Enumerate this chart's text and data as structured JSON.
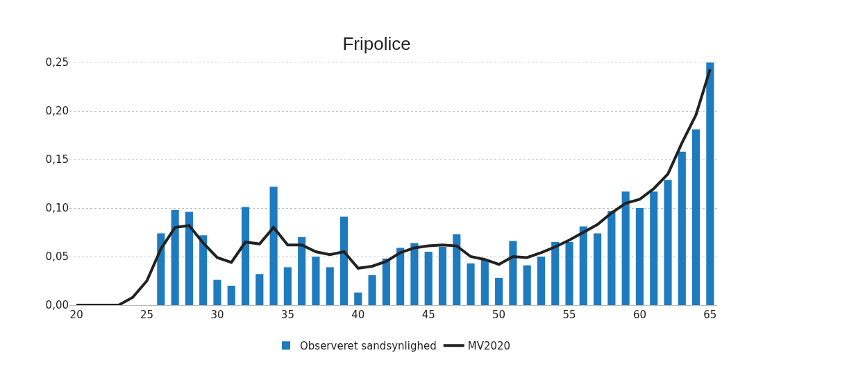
{
  "chart_data": {
    "type": "bar",
    "title": "Fripolice",
    "x": [
      20,
      21,
      22,
      23,
      24,
      25,
      26,
      27,
      28,
      29,
      30,
      31,
      32,
      33,
      34,
      35,
      36,
      37,
      38,
      39,
      40,
      41,
      42,
      43,
      44,
      45,
      46,
      47,
      48,
      49,
      50,
      51,
      52,
      53,
      54,
      55,
      56,
      57,
      58,
      59,
      60,
      61,
      62,
      63,
      64,
      65
    ],
    "series": [
      {
        "name": "Observeret sandsynlighed",
        "color": "#1f7bbf",
        "values": [
          0,
          0,
          0,
          0,
          0,
          0,
          0.074,
          0.098,
          0.096,
          0.072,
          0.026,
          0.02,
          0.101,
          0.032,
          0.122,
          0.039,
          0.07,
          0.05,
          0.039,
          0.091,
          0.013,
          0.031,
          0.048,
          0.059,
          0.064,
          0.055,
          0.06,
          0.073,
          0.043,
          0.047,
          0.028,
          0.066,
          0.041,
          0.05,
          0.065,
          0.065,
          0.081,
          0.074,
          0.097,
          0.117,
          0.1,
          0.117,
          0.129,
          0.158,
          0.181,
          0.25
        ]
      },
      {
        "name": "MV2020",
        "type": "line",
        "color": "#222222",
        "values": [
          0,
          0,
          0,
          0,
          0.008,
          0.025,
          0.058,
          0.08,
          0.082,
          0.064,
          0.049,
          0.044,
          0.065,
          0.063,
          0.08,
          0.062,
          0.062,
          0.055,
          0.052,
          0.055,
          0.038,
          0.04,
          0.045,
          0.054,
          0.059,
          0.061,
          0.062,
          0.061,
          0.05,
          0.047,
          0.042,
          0.05,
          0.049,
          0.054,
          0.06,
          0.067,
          0.075,
          0.083,
          0.095,
          0.105,
          0.109,
          0.12,
          0.135,
          0.167,
          0.196,
          0.243
        ]
      }
    ],
    "xlim": [
      19.5,
      65.5
    ],
    "xticks": [
      20,
      25,
      30,
      35,
      40,
      45,
      50,
      55,
      60,
      65
    ],
    "ylim": [
      0,
      0.25
    ],
    "yticks": [
      {
        "value": 0,
        "label": "0,00"
      },
      {
        "value": 0.05,
        "label": "0,05"
      },
      {
        "value": 0.1,
        "label": "0,10"
      },
      {
        "value": 0.15,
        "label": "0,15"
      },
      {
        "value": 0.2,
        "label": "0,20"
      },
      {
        "value": 0.25,
        "label": "0,25"
      }
    ],
    "grid": "y",
    "legend": "bottom",
    "marker": "none",
    "line_style": "solid"
  }
}
